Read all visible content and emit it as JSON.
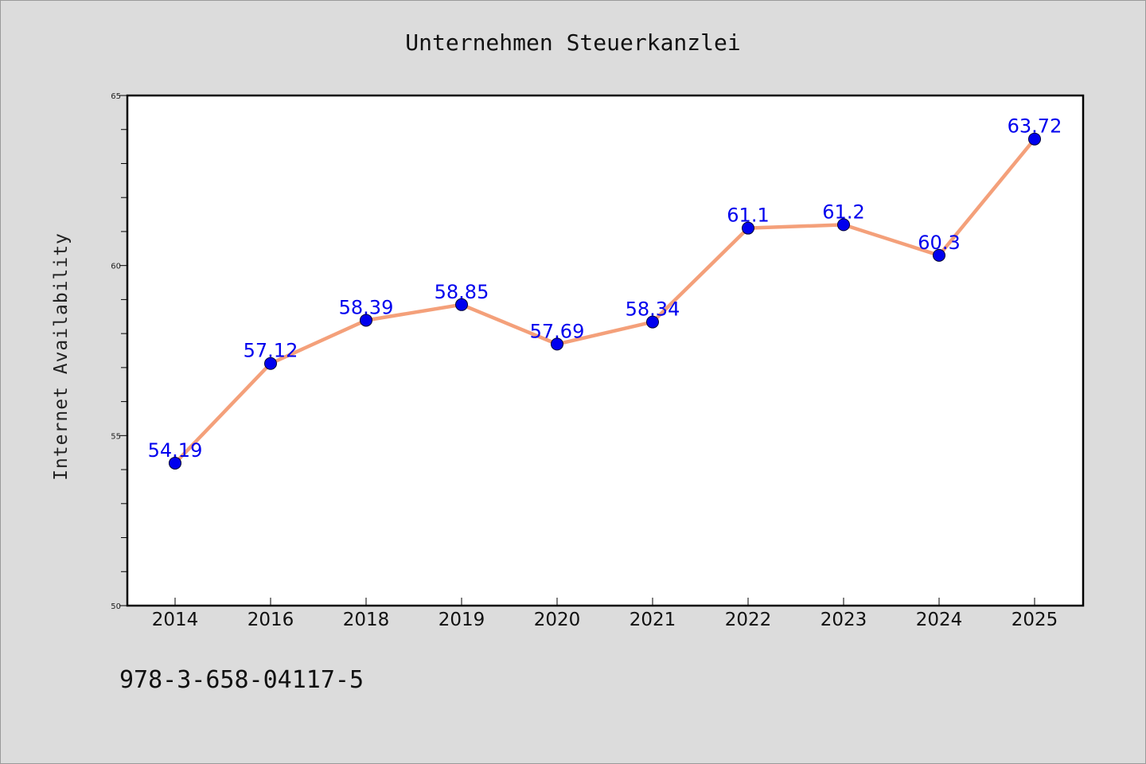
{
  "chart_data": {
    "type": "line",
    "title": "Unternehmen Steuerkanzlei",
    "xlabel": "",
    "ylabel": "Internet Availability",
    "categories": [
      "2014",
      "2016",
      "2018",
      "2019",
      "2020",
      "2021",
      "2022",
      "2023",
      "2024",
      "2025"
    ],
    "series": [
      {
        "values": [
          54.19,
          57.12,
          58.39,
          58.85,
          57.69,
          58.34,
          61.1,
          61.2,
          60.3,
          63.72
        ],
        "labels": [
          "54.19",
          "57.12",
          "58.39",
          "58.85",
          "57.69",
          "58.34",
          "61.1",
          "61.2",
          "60.3",
          "63.72"
        ],
        "line_color": "#f4a07a",
        "marker_color": "#0000ee"
      }
    ],
    "ylim": [
      50,
      65
    ],
    "yticks": [
      "50",
      "55",
      "60",
      "65"
    ],
    "grid": false,
    "legend": "none"
  },
  "footnote": "978-3-658-04117-5"
}
